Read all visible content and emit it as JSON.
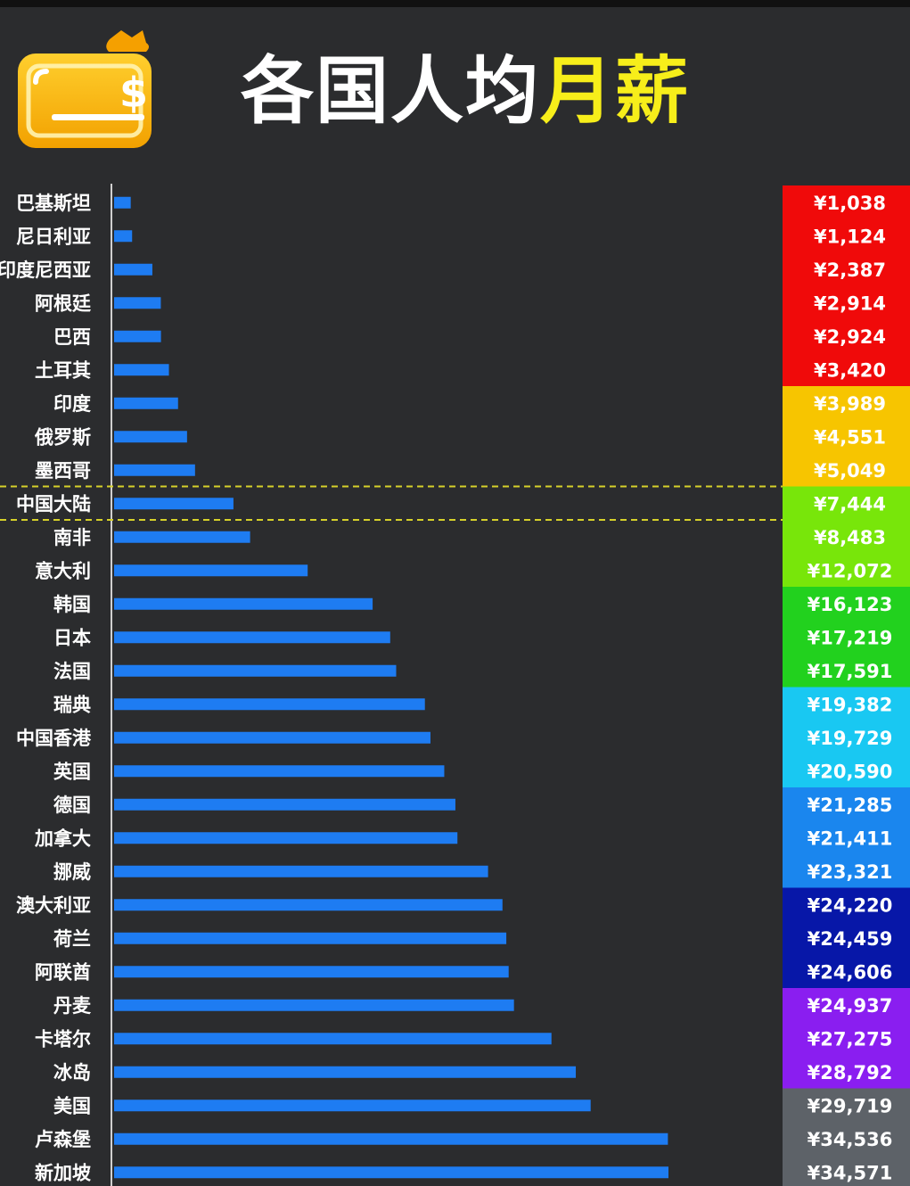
{
  "title": {
    "part1": "各国人均",
    "part2": "月薪",
    "color_white": "#ffffff",
    "color_yellow": "#f7ee1a"
  },
  "icon": "wallet-money-bag-icon",
  "colors": {
    "background": "#2b2c2e",
    "bar": "#1e7cf2",
    "axis": "#d0d0d0",
    "highlight_line": "#d6d12a"
  },
  "chart_data": {
    "type": "bar",
    "orientation": "horizontal",
    "title": "各国人均月薪",
    "highlight": "中国大陆",
    "categories": [
      "巴基斯坦",
      "尼日利亚",
      "印度尼西亚",
      "阿根廷",
      "巴西",
      "土耳其",
      "印度",
      "俄罗斯",
      "墨西哥",
      "中国大陆",
      "南非",
      "意大利",
      "韩国",
      "日本",
      "法国",
      "瑞典",
      "中国香港",
      "英国",
      "德国",
      "加拿大",
      "挪威",
      "澳大利亚",
      "荷兰",
      "阿联酋",
      "丹麦",
      "卡塔尔",
      "冰岛",
      "美国",
      "卢森堡",
      "新加坡"
    ],
    "values": [
      1038,
      1124,
      2387,
      2914,
      2924,
      3420,
      3989,
      4551,
      5049,
      7444,
      8483,
      12072,
      16123,
      17219,
      17591,
      19382,
      19729,
      20590,
      21285,
      21411,
      23321,
      24220,
      24459,
      24606,
      24937,
      27275,
      28792,
      29719,
      34536,
      34571
    ],
    "value_labels": [
      "¥1,038",
      "¥1,124",
      "¥2,387",
      "¥2,914",
      "¥2,924",
      "¥3,420",
      "¥3,989",
      "¥4,551",
      "¥5,049",
      "¥7,444",
      "¥8,483",
      "¥12,072",
      "¥16,123",
      "¥17,219",
      "¥17,591",
      "¥19,382",
      "¥19,729",
      "¥20,590",
      "¥21,285",
      "¥21,411",
      "¥23,321",
      "¥24,220",
      "¥24,459",
      "¥24,606",
      "¥24,937",
      "¥27,275",
      "¥28,792",
      "¥29,719",
      "¥34,536",
      "¥34,571"
    ],
    "value_bg_colors": [
      "#f00a0a",
      "#f00a0a",
      "#f00a0a",
      "#f00a0a",
      "#f00a0a",
      "#f00a0a",
      "#f7c500",
      "#f7c500",
      "#f7c500",
      "#78e60a",
      "#78e60a",
      "#78e60a",
      "#22d11e",
      "#22d11e",
      "#22d11e",
      "#19c8f2",
      "#19c8f2",
      "#19c8f2",
      "#1a86ee",
      "#1a86ee",
      "#1a86ee",
      "#0717a8",
      "#0717a8",
      "#0717a8",
      "#8a1ef0",
      "#8a1ef0",
      "#8a1ef0",
      "#5d6268",
      "#5d6268",
      "#5d6268"
    ],
    "value_text_colors": [
      "#ffffff",
      "#ffffff",
      "#ffffff",
      "#ffffff",
      "#ffffff",
      "#ffffff",
      "#f9e27a",
      "#f9e27a",
      "#f9e27a",
      "#ffffff",
      "#ffffff",
      "#ffffff",
      "#ffffff",
      "#ffffff",
      "#ffffff",
      "#8fe8fb",
      "#8fe8fb",
      "#8fe8fb",
      "#ffffff",
      "#ffffff",
      "#ffffff",
      "#ffffff",
      "#ffffff",
      "#ffffff",
      "#ffffff",
      "#ffffff",
      "#ffffff",
      "#ffffff",
      "#ffffff",
      "#ffffff"
    ]
  }
}
